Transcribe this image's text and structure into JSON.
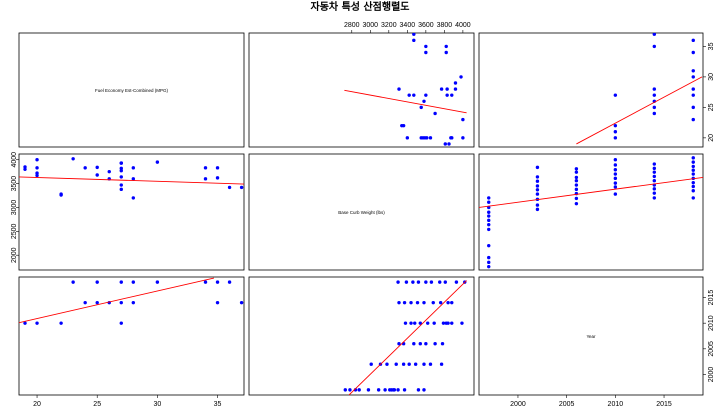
{
  "title": "자동차 특성 산점행렬도",
  "chart_data": {
    "type": "scatter",
    "title": "자동차 특성 산점행렬도",
    "variables": [
      {
        "name": "Fuel Economy Est-Combined (MPG)",
        "ticks": [
          20,
          25,
          30,
          35
        ],
        "lim": [
          18.5,
          37.2
        ]
      },
      {
        "name": "Base Curb Weight (lbs)",
        "ticks": [
          2000,
          2500,
          3000,
          3500,
          4000
        ],
        "top_ticks": [
          2800,
          3000,
          3200,
          3400,
          3600,
          3800,
          4000
        ],
        "lim": [
          1690,
          4120
        ]
      },
      {
        "name": "Year",
        "ticks": [
          2000,
          2005,
          2010,
          2015
        ],
        "lim": [
          1996,
          2019
        ]
      }
    ],
    "pairs": [
      {
        "x_var": "Base Curb Weight (lbs)",
        "y_var": "Fuel Economy Est-Combined (MPG)",
        "points": [
          [
            3470,
            37
          ],
          [
            3470,
            36
          ],
          [
            3600,
            35
          ],
          [
            3600,
            34
          ],
          [
            3820,
            35
          ],
          [
            3820,
            34
          ],
          [
            3830,
            27
          ],
          [
            3830,
            28
          ],
          [
            3920,
            29
          ],
          [
            3920,
            28
          ],
          [
            3880,
            27
          ],
          [
            3770,
            28
          ],
          [
            3700,
            24
          ],
          [
            3600,
            27
          ],
          [
            3580,
            26
          ],
          [
            3550,
            25
          ],
          [
            3420,
            27
          ],
          [
            3470,
            27
          ],
          [
            3310,
            28
          ],
          [
            3360,
            22
          ],
          [
            3340,
            22
          ],
          [
            3400,
            20
          ],
          [
            3550,
            20
          ],
          [
            3570,
            20
          ],
          [
            3590,
            20
          ],
          [
            3610,
            20
          ],
          [
            3650,
            20
          ],
          [
            3810,
            19
          ],
          [
            3850,
            19
          ],
          [
            3870,
            20
          ],
          [
            3880,
            20
          ],
          [
            4000,
            20
          ],
          [
            4000,
            23
          ],
          [
            3980,
            30
          ]
        ],
        "fit": [
          [
            2720,
            27.8
          ],
          [
            4040,
            24.1
          ]
        ]
      },
      {
        "x_var": "Year",
        "y_var": "Fuel Economy Est-Combined (MPG)",
        "points": [
          [
            2010,
            20
          ],
          [
            2010,
            21
          ],
          [
            2010,
            22
          ],
          [
            2010,
            27
          ],
          [
            2014,
            37
          ],
          [
            2014,
            35
          ],
          [
            2014,
            28
          ],
          [
            2014,
            27
          ],
          [
            2014,
            26
          ],
          [
            2014,
            25
          ],
          [
            2014,
            24
          ],
          [
            2018,
            36
          ],
          [
            2018,
            34
          ],
          [
            2018,
            31
          ],
          [
            2018,
            30
          ],
          [
            2018,
            28
          ],
          [
            2018,
            27
          ],
          [
            2018,
            25
          ],
          [
            2018,
            23
          ]
        ],
        "fit": [
          [
            2006,
            19
          ],
          [
            2018.9,
            30
          ]
        ]
      },
      {
        "x_var": "Fuel Economy Est-Combined (MPG)",
        "y_var": "Base Curb Weight (lbs)",
        "points": [
          [
            19,
            3850
          ],
          [
            19,
            3800
          ],
          [
            20,
            4000
          ],
          [
            20,
            3830
          ],
          [
            20,
            3720
          ],
          [
            20,
            3670
          ],
          [
            22,
            3280
          ],
          [
            22,
            3260
          ],
          [
            23,
            4020
          ],
          [
            24,
            3830
          ],
          [
            25,
            3840
          ],
          [
            25,
            3680
          ],
          [
            26,
            3750
          ],
          [
            26,
            3600
          ],
          [
            27,
            3930
          ],
          [
            27,
            3930
          ],
          [
            27,
            3820
          ],
          [
            27,
            3770
          ],
          [
            27,
            3640
          ],
          [
            27,
            3470
          ],
          [
            27,
            3380
          ],
          [
            28,
            3830
          ],
          [
            28,
            3600
          ],
          [
            28,
            3200
          ],
          [
            30,
            3950
          ],
          [
            34,
            3830
          ],
          [
            34,
            3600
          ],
          [
            35,
            3830
          ],
          [
            35,
            3620
          ],
          [
            36,
            3420
          ],
          [
            37,
            3420
          ]
        ],
        "fit": [
          [
            18.5,
            3640
          ],
          [
            37.2,
            3490
          ]
        ]
      },
      {
        "x_var": "Year",
        "y_var": "Base Curb Weight (lbs)",
        "points": [
          [
            1997,
            3200
          ],
          [
            1997,
            3110
          ],
          [
            1997,
            3000
          ],
          [
            1997,
            2900
          ],
          [
            1997,
            2820
          ],
          [
            1997,
            2730
          ],
          [
            1997,
            2640
          ],
          [
            1997,
            2540
          ],
          [
            1997,
            2200
          ],
          [
            1997,
            1950
          ],
          [
            1997,
            1850
          ],
          [
            1997,
            1760
          ],
          [
            2002,
            3840
          ],
          [
            2002,
            3640
          ],
          [
            2002,
            3550
          ],
          [
            2002,
            3450
          ],
          [
            2002,
            3370
          ],
          [
            2002,
            3280
          ],
          [
            2002,
            3170
          ],
          [
            2002,
            3050
          ],
          [
            2002,
            2960
          ],
          [
            2006,
            3810
          ],
          [
            2006,
            3740
          ],
          [
            2006,
            3630
          ],
          [
            2006,
            3560
          ],
          [
            2006,
            3470
          ],
          [
            2006,
            3380
          ],
          [
            2006,
            3290
          ],
          [
            2006,
            3190
          ],
          [
            2006,
            3080
          ],
          [
            2010,
            4000
          ],
          [
            2010,
            3890
          ],
          [
            2010,
            3790
          ],
          [
            2010,
            3700
          ],
          [
            2010,
            3610
          ],
          [
            2010,
            3510
          ],
          [
            2010,
            3430
          ],
          [
            2010,
            3280
          ],
          [
            2014,
            3910
          ],
          [
            2014,
            3820
          ],
          [
            2014,
            3740
          ],
          [
            2014,
            3650
          ],
          [
            2014,
            3560
          ],
          [
            2014,
            3470
          ],
          [
            2014,
            3390
          ],
          [
            2014,
            3300
          ],
          [
            2014,
            3200
          ],
          [
            2018,
            4040
          ],
          [
            2018,
            3950
          ],
          [
            2018,
            3860
          ],
          [
            2018,
            3780
          ],
          [
            2018,
            3700
          ],
          [
            2018,
            3610
          ],
          [
            2018,
            3520
          ],
          [
            2018,
            3440
          ],
          [
            2018,
            3350
          ],
          [
            2018,
            3200
          ]
        ],
        "fit": [
          [
            1996,
            3000
          ],
          [
            2019,
            3630
          ]
        ]
      },
      {
        "x_var": "Fuel Economy Est-Combined (MPG)",
        "y_var": "Year",
        "points": [
          [
            19,
            2010
          ],
          [
            20,
            2010
          ],
          [
            22,
            2010
          ],
          [
            23,
            2018
          ],
          [
            24,
            2014
          ],
          [
            25,
            2018
          ],
          [
            25,
            2014
          ],
          [
            26,
            2014
          ],
          [
            27,
            2018
          ],
          [
            27,
            2014
          ],
          [
            27,
            2010
          ],
          [
            28,
            2018
          ],
          [
            28,
            2014
          ],
          [
            30,
            2018
          ],
          [
            34,
            2018
          ],
          [
            35,
            2018
          ],
          [
            35,
            2014
          ],
          [
            36,
            2018
          ],
          [
            37,
            2014
          ]
        ],
        "fit": [
          [
            18.5,
            2010.1
          ],
          [
            34.7,
            2018.8
          ]
        ]
      },
      {
        "x_var": "Base Curb Weight (lbs)",
        "y_var": "Year",
        "points": [
          [
            2730,
            1997
          ],
          [
            2780,
            1997
          ],
          [
            2840,
            1997
          ],
          [
            2880,
            1997
          ],
          [
            2980,
            1997
          ],
          [
            3090,
            1997
          ],
          [
            3160,
            1997
          ],
          [
            3210,
            1997
          ],
          [
            3230,
            1997
          ],
          [
            3250,
            1997
          ],
          [
            3260,
            1997
          ],
          [
            3300,
            1997
          ],
          [
            3370,
            1997
          ],
          [
            3520,
            1997
          ],
          [
            3580,
            1997
          ],
          [
            3010,
            2002
          ],
          [
            3110,
            2002
          ],
          [
            3180,
            2002
          ],
          [
            3280,
            2002
          ],
          [
            3360,
            2002
          ],
          [
            3420,
            2002
          ],
          [
            3490,
            2002
          ],
          [
            3580,
            2002
          ],
          [
            3650,
            2002
          ],
          [
            3770,
            2002
          ],
          [
            3310,
            2006
          ],
          [
            3360,
            2006
          ],
          [
            3470,
            2006
          ],
          [
            3540,
            2006
          ],
          [
            3600,
            2006
          ],
          [
            3700,
            2006
          ],
          [
            3780,
            2006
          ],
          [
            3380,
            2010
          ],
          [
            3440,
            2010
          ],
          [
            3480,
            2010
          ],
          [
            3540,
            2010
          ],
          [
            3620,
            2010
          ],
          [
            3690,
            2010
          ],
          [
            3790,
            2010
          ],
          [
            3820,
            2010
          ],
          [
            3840,
            2010
          ],
          [
            3880,
            2010
          ],
          [
            3990,
            2010
          ],
          [
            3310,
            2014
          ],
          [
            3370,
            2014
          ],
          [
            3440,
            2014
          ],
          [
            3510,
            2014
          ],
          [
            3580,
            2014
          ],
          [
            3680,
            2014
          ],
          [
            3760,
            2014
          ],
          [
            3840,
            2014
          ],
          [
            3880,
            2014
          ],
          [
            3300,
            2018
          ],
          [
            3390,
            2018
          ],
          [
            3460,
            2018
          ],
          [
            3520,
            2018
          ],
          [
            3600,
            2018
          ],
          [
            3660,
            2018
          ],
          [
            3750,
            2018
          ],
          [
            3810,
            2018
          ],
          [
            3930,
            2018
          ],
          [
            4020,
            2018
          ]
        ],
        "fit": [
          [
            2770,
            1996
          ],
          [
            4040,
            2018.3
          ]
        ]
      }
    ]
  }
}
